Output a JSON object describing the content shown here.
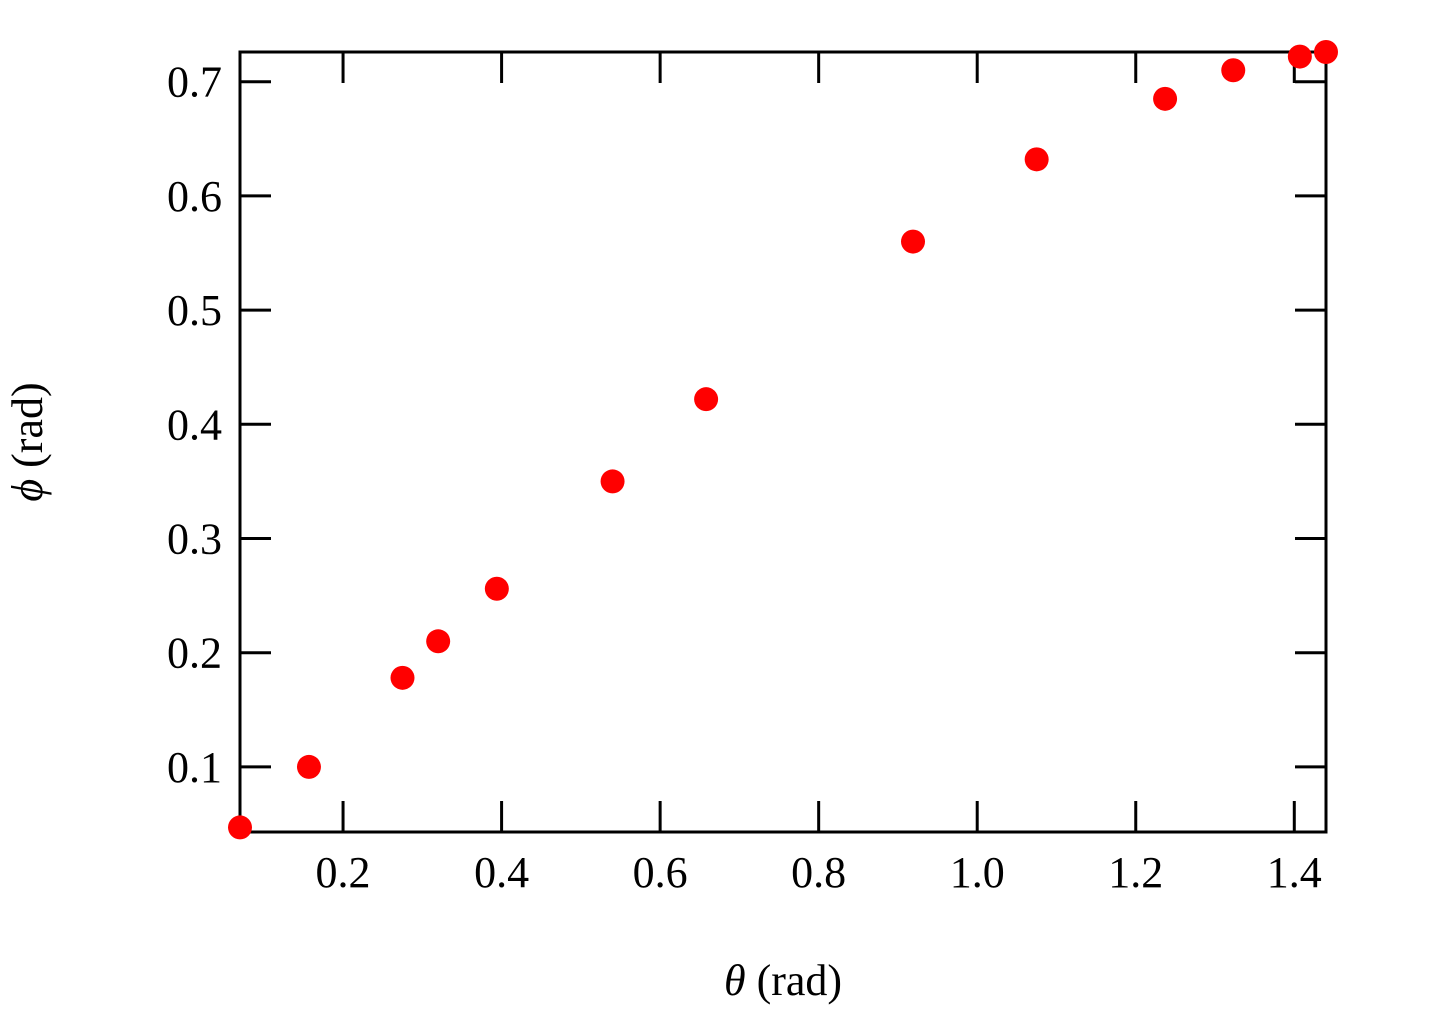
{
  "chart_data": {
    "type": "scatter",
    "title": "",
    "xlabel_symbol": "θ",
    "xlabel_unit": "(rad)",
    "ylabel_symbol": "ϕ",
    "ylabel_unit": "(rad)",
    "xlim": [
      0.07,
      1.44
    ],
    "ylim": [
      0.043,
      0.726
    ],
    "xticks": [
      0.2,
      0.4,
      0.6,
      0.8,
      1.0,
      1.2,
      1.4
    ],
    "xtick_labels": [
      "0.2",
      "0.4",
      "0.6",
      "0.8",
      "1.0",
      "1.2",
      "1.4"
    ],
    "yticks": [
      0.1,
      0.2,
      0.3,
      0.4,
      0.5,
      0.6,
      0.7
    ],
    "ytick_labels": [
      "0.1",
      "0.2",
      "0.3",
      "0.4",
      "0.5",
      "0.6",
      "0.7"
    ],
    "grid": false,
    "legend": "none",
    "marker_color": "#ff0000",
    "series": [
      {
        "x": [
          0.07,
          0.157,
          0.275,
          0.32,
          0.394,
          0.54,
          0.658,
          0.919,
          1.075,
          1.237,
          1.323,
          1.407,
          1.44
        ],
        "y": [
          0.047,
          0.1,
          0.178,
          0.21,
          0.256,
          0.35,
          0.422,
          0.56,
          0.632,
          0.685,
          0.71,
          0.722,
          0.726
        ]
      }
    ]
  }
}
